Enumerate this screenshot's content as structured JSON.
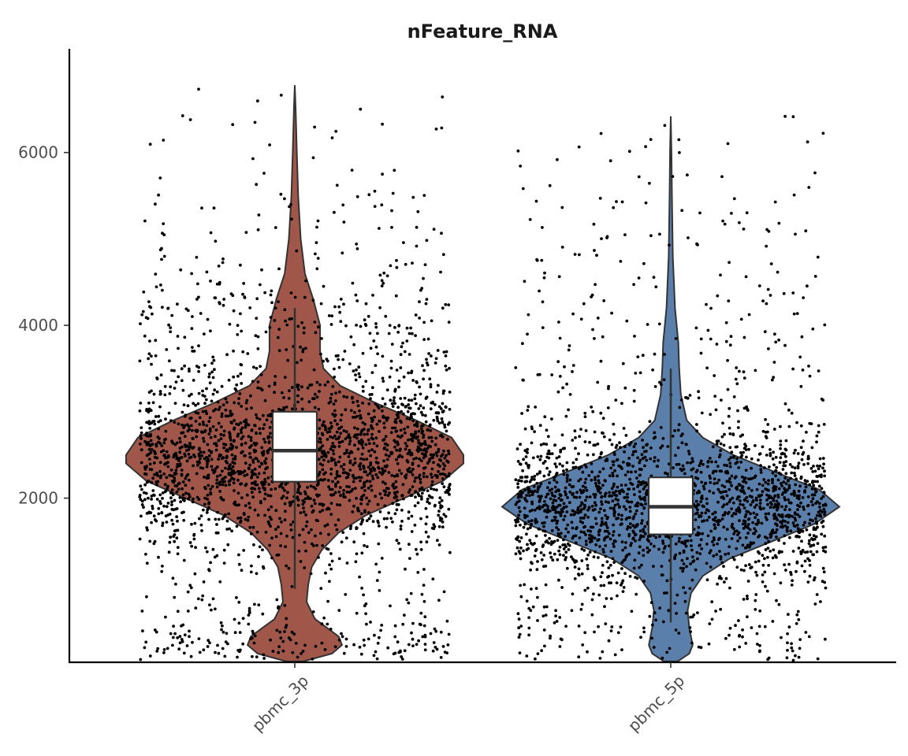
{
  "chart_data": {
    "type": "violin",
    "title": "nFeature_RNA",
    "xlabel": "",
    "ylabel": "",
    "categories": [
      "pbmc_3p",
      "pbmc_5p"
    ],
    "ylim": [
      100,
      7200
    ],
    "yticks": [
      2000,
      4000,
      6000
    ],
    "y_tick_labels": [
      "2000",
      "4000",
      "6000"
    ],
    "grid": false,
    "legend": "none",
    "jitter_points": true,
    "colors": {
      "pbmc_3p": "#A0574A",
      "pbmc_5p": "#5B7FAB"
    },
    "groups": [
      {
        "name": "pbmc_3p",
        "fill": "#A0574A",
        "box": {
          "q1": 2190,
          "median": 2550,
          "q3": 3000,
          "whisker_low": 950,
          "whisker_high": 4200
        },
        "range": [
          110,
          6780
        ],
        "density": [
          [
            110,
            0.05
          ],
          [
            200,
            0.22
          ],
          [
            300,
            0.28
          ],
          [
            400,
            0.26
          ],
          [
            500,
            0.19
          ],
          [
            600,
            0.12
          ],
          [
            800,
            0.07
          ],
          [
            1000,
            0.08
          ],
          [
            1200,
            0.1
          ],
          [
            1400,
            0.16
          ],
          [
            1600,
            0.26
          ],
          [
            1800,
            0.42
          ],
          [
            2000,
            0.65
          ],
          [
            2200,
            0.88
          ],
          [
            2400,
            1.0
          ],
          [
            2500,
            1.0
          ],
          [
            2700,
            0.93
          ],
          [
            2900,
            0.72
          ],
          [
            3100,
            0.48
          ],
          [
            3300,
            0.27
          ],
          [
            3500,
            0.17
          ],
          [
            3700,
            0.15
          ],
          [
            4000,
            0.15
          ],
          [
            4300,
            0.11
          ],
          [
            4600,
            0.06
          ],
          [
            5000,
            0.035
          ],
          [
            5500,
            0.02
          ],
          [
            6000,
            0.012
          ],
          [
            6500,
            0.005
          ],
          [
            6780,
            0.0
          ]
        ]
      },
      {
        "name": "pbmc_5p",
        "fill": "#5B7FAB",
        "box": {
          "q1": 1580,
          "median": 1900,
          "q3": 2240,
          "whisker_low": 560,
          "whisker_high": 3500
        },
        "range": [
          110,
          6420
        ],
        "density": [
          [
            110,
            0.04
          ],
          [
            200,
            0.11
          ],
          [
            300,
            0.13
          ],
          [
            500,
            0.11
          ],
          [
            700,
            0.1
          ],
          [
            900,
            0.12
          ],
          [
            1100,
            0.19
          ],
          [
            1300,
            0.35
          ],
          [
            1500,
            0.6
          ],
          [
            1700,
            0.85
          ],
          [
            1900,
            1.0
          ],
          [
            2100,
            0.88
          ],
          [
            2300,
            0.62
          ],
          [
            2500,
            0.37
          ],
          [
            2700,
            0.19
          ],
          [
            2900,
            0.095
          ],
          [
            3200,
            0.06
          ],
          [
            3500,
            0.05
          ],
          [
            3800,
            0.045
          ],
          [
            4200,
            0.025
          ],
          [
            4800,
            0.012
          ],
          [
            5500,
            0.007
          ],
          [
            6000,
            0.004
          ],
          [
            6420,
            0.0
          ]
        ]
      }
    ]
  }
}
